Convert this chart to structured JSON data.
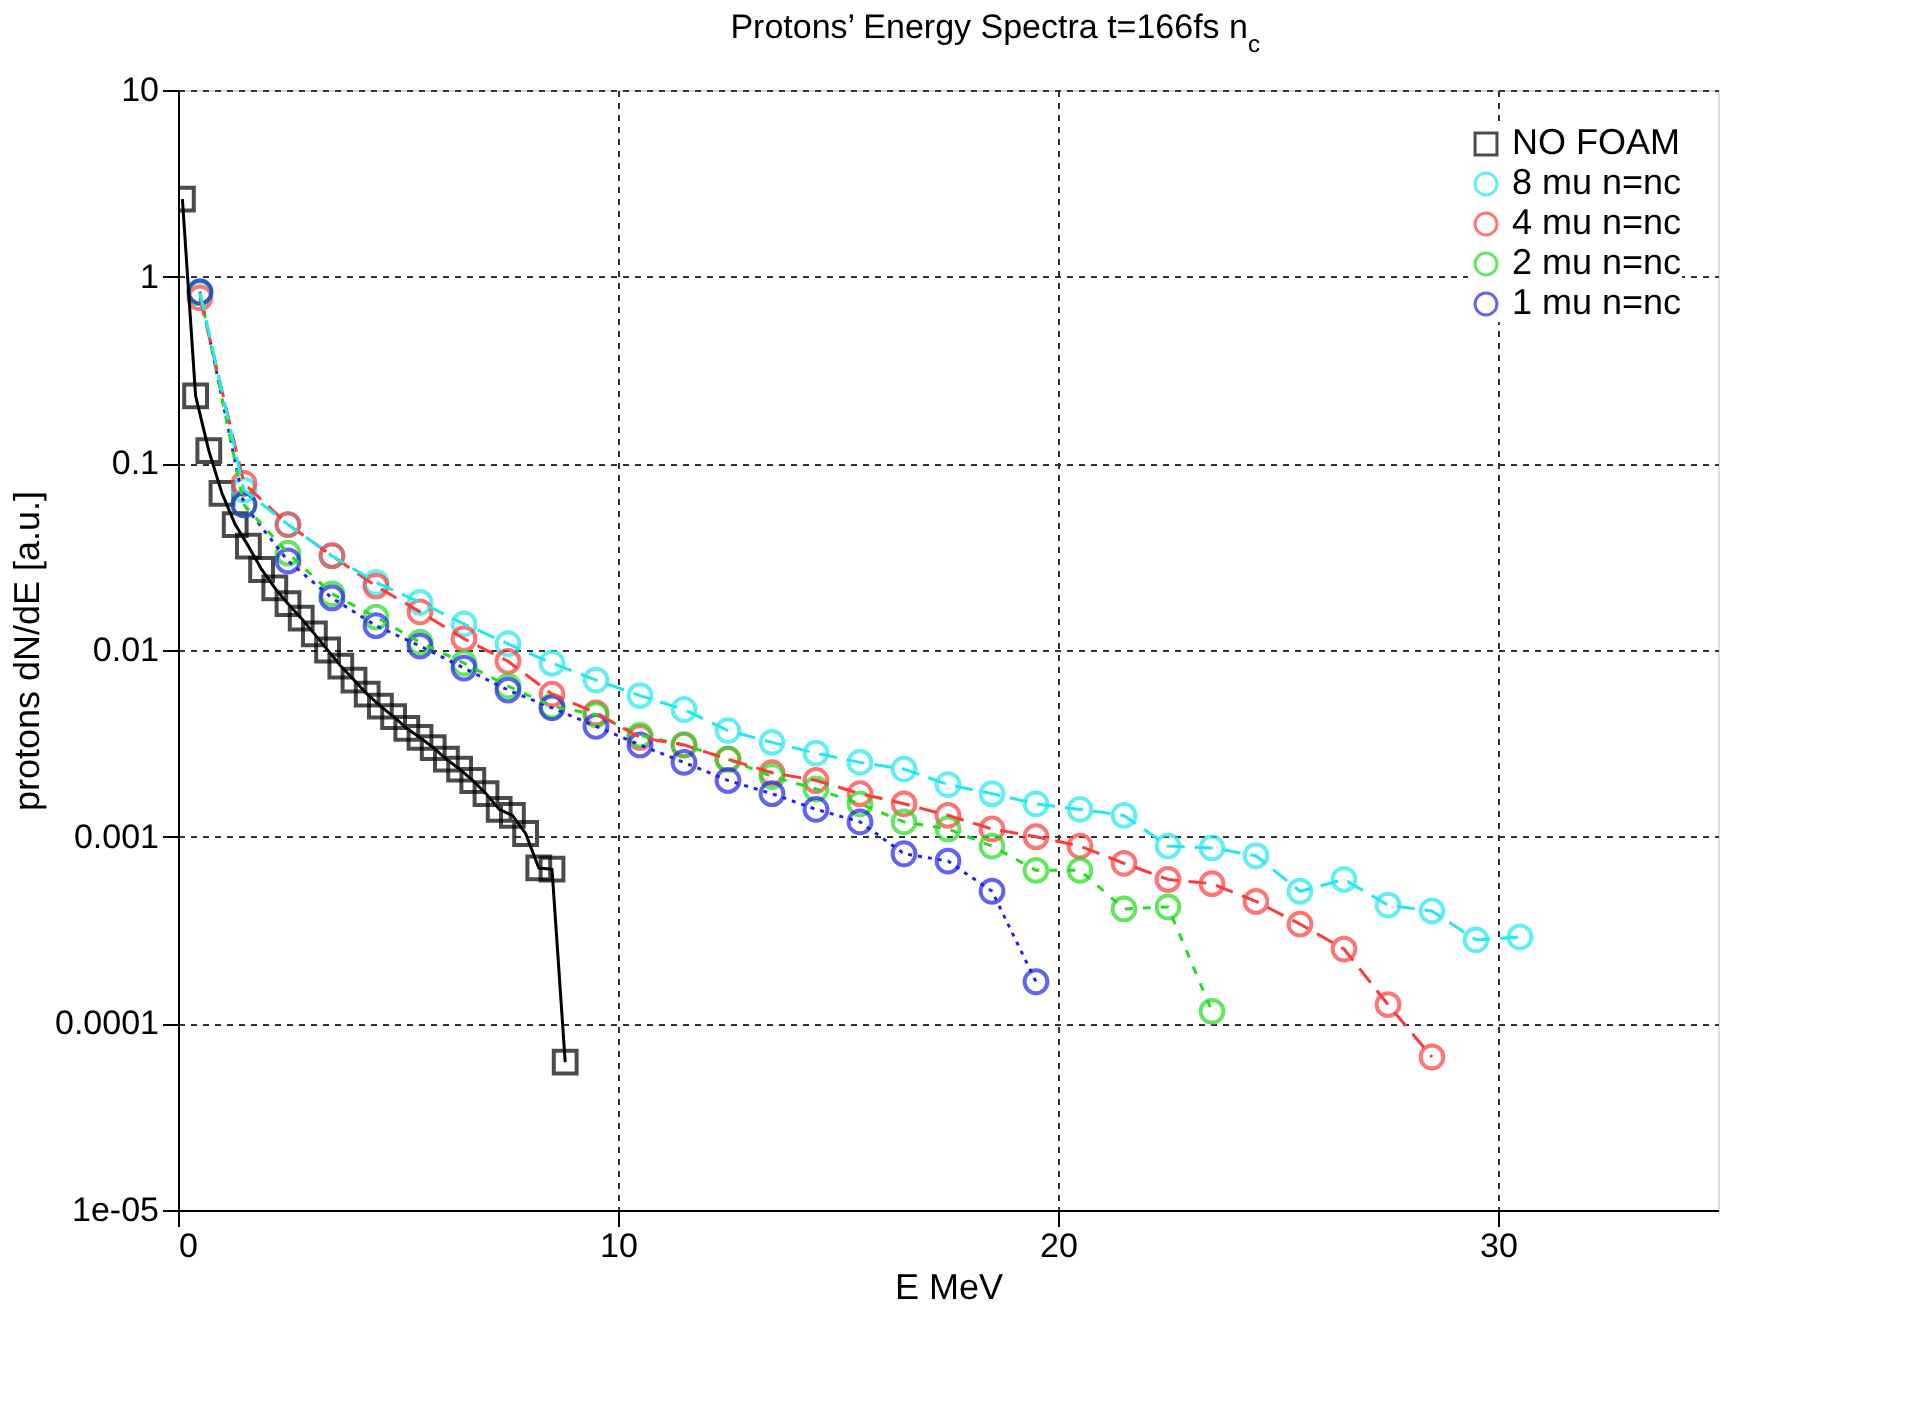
{
  "chart_data": {
    "type": "line",
    "title": "Protons’ Energy Spectra  t=166fs n$_{c}$",
    "xlabel": "E MeV",
    "ylabel": "protons dN/dE [a.u.]",
    "xlim": [
      0,
      35
    ],
    "xticks": [
      0,
      10,
      20,
      30
    ],
    "ylim": [
      1e-05,
      10
    ],
    "log": "y",
    "yticks": [
      {
        "value": 1e-05,
        "label": "1e-05"
      },
      0.0001,
      0.001,
      0.01,
      0.1,
      1,
      10
    ],
    "grid": true,
    "legend": "top right",
    "series": [
      {
        "name": "NO FOAM",
        "color": "#000000",
        "line_style": "solid",
        "marker": "square",
        "x": [
          0.1,
          0.4,
          0.7,
          1.0,
          1.3,
          1.6,
          1.9,
          2.2,
          2.5,
          2.8,
          3.1,
          3.4,
          3.7,
          4.0,
          4.3,
          4.6,
          4.9,
          5.2,
          5.5,
          5.8,
          6.1,
          6.4,
          6.7,
          7.0,
          7.3,
          7.6,
          7.9,
          8.2,
          8.5,
          8.8
        ],
        "values": [
          2.6,
          0.23,
          0.117,
          0.069,
          0.047,
          0.036,
          0.027,
          0.0215,
          0.0177,
          0.0148,
          0.0122,
          0.01,
          0.0082,
          0.0069,
          0.0058,
          0.005,
          0.0044,
          0.0038,
          0.0034,
          0.003,
          0.0026,
          0.0023,
          0.002,
          0.0017,
          0.0014,
          0.0013,
          0.00104,
          0.00068,
          0.00067,
          6.2e-05
        ]
      },
      {
        "name": "8 mu n=nc",
        "color": "#22e8f0",
        "line_style": "dashed",
        "marker": "circle",
        "x": [
          0.5,
          1.5,
          2.5,
          3.5,
          4.5,
          5.5,
          6.5,
          7.5,
          8.5,
          9.5,
          10.5,
          11.5,
          12.5,
          13.5,
          14.5,
          15.5,
          16.5,
          17.5,
          18.5,
          19.5,
          20.5,
          21.5,
          22.5,
          23.5,
          24.5,
          25.5,
          26.5,
          27.5,
          28.5,
          29.5,
          30.5
        ],
        "values": [
          0.82,
          0.072,
          0.047,
          0.032,
          0.023,
          0.018,
          0.0138,
          0.0108,
          0.0085,
          0.0069,
          0.0057,
          0.0048,
          0.0037,
          0.0032,
          0.0028,
          0.0025,
          0.0023,
          0.0019,
          0.0017,
          0.0015,
          0.0014,
          0.0013,
          0.00089,
          0.00087,
          0.00079,
          0.00051,
          0.00059,
          0.00043,
          0.0004,
          0.00028,
          0.00029
        ]
      },
      {
        "name": "4 mu n=nc",
        "color": "#ff3a3a",
        "line_style": "dashed",
        "marker": "circle",
        "x": [
          0.5,
          1.5,
          2.5,
          3.5,
          4.5,
          5.5,
          6.5,
          7.5,
          8.5,
          9.5,
          10.5,
          11.5,
          12.5,
          13.5,
          14.5,
          15.5,
          16.5,
          17.5,
          18.5,
          19.5,
          20.5,
          21.5,
          22.5,
          23.5,
          24.5,
          25.5,
          26.5,
          27.5,
          28.5
        ],
        "values": [
          0.77,
          0.078,
          0.047,
          0.032,
          0.022,
          0.016,
          0.0115,
          0.0087,
          0.0058,
          0.0046,
          0.0034,
          0.0031,
          0.0026,
          0.0022,
          0.002,
          0.0017,
          0.0015,
          0.0013,
          0.0011,
          0.001,
          0.00089,
          0.00072,
          0.00059,
          0.00056,
          0.00045,
          0.00034,
          0.00025,
          0.000126,
          6.6e-05
        ]
      },
      {
        "name": "2 mu n=nc",
        "color": "#22dd22",
        "line_style": "shortdash",
        "marker": "circle",
        "x": [
          0.5,
          1.5,
          2.5,
          3.5,
          4.5,
          5.5,
          6.5,
          7.5,
          8.5,
          9.5,
          10.5,
          11.5,
          12.5,
          13.5,
          14.5,
          15.5,
          16.5,
          17.5,
          18.5,
          19.5,
          20.5,
          21.5,
          22.5,
          23.5
        ],
        "values": [
          0.82,
          0.06,
          0.033,
          0.02,
          0.015,
          0.011,
          0.0085,
          0.0064,
          0.005,
          0.0045,
          0.0035,
          0.0031,
          0.0026,
          0.0021,
          0.0018,
          0.0015,
          0.0012,
          0.0011,
          0.00089,
          0.00066,
          0.00066,
          0.00041,
          0.00042,
          0.000116
        ]
      },
      {
        "name": "1 mu n=nc",
        "color": "#2222ee",
        "line_style": "dotted",
        "marker": "circle",
        "x": [
          0.5,
          1.5,
          2.5,
          3.5,
          4.5,
          5.5,
          6.5,
          7.5,
          8.5,
          9.5,
          10.5,
          11.5,
          12.5,
          13.5,
          14.5,
          15.5,
          16.5,
          17.5,
          18.5,
          19.5
        ],
        "values": [
          0.83,
          0.06,
          0.03,
          0.019,
          0.0135,
          0.0105,
          0.008,
          0.0061,
          0.0049,
          0.0039,
          0.0031,
          0.0025,
          0.002,
          0.0017,
          0.0014,
          0.0012,
          0.00081,
          0.00074,
          0.00051,
          0.000167
        ]
      }
    ]
  }
}
